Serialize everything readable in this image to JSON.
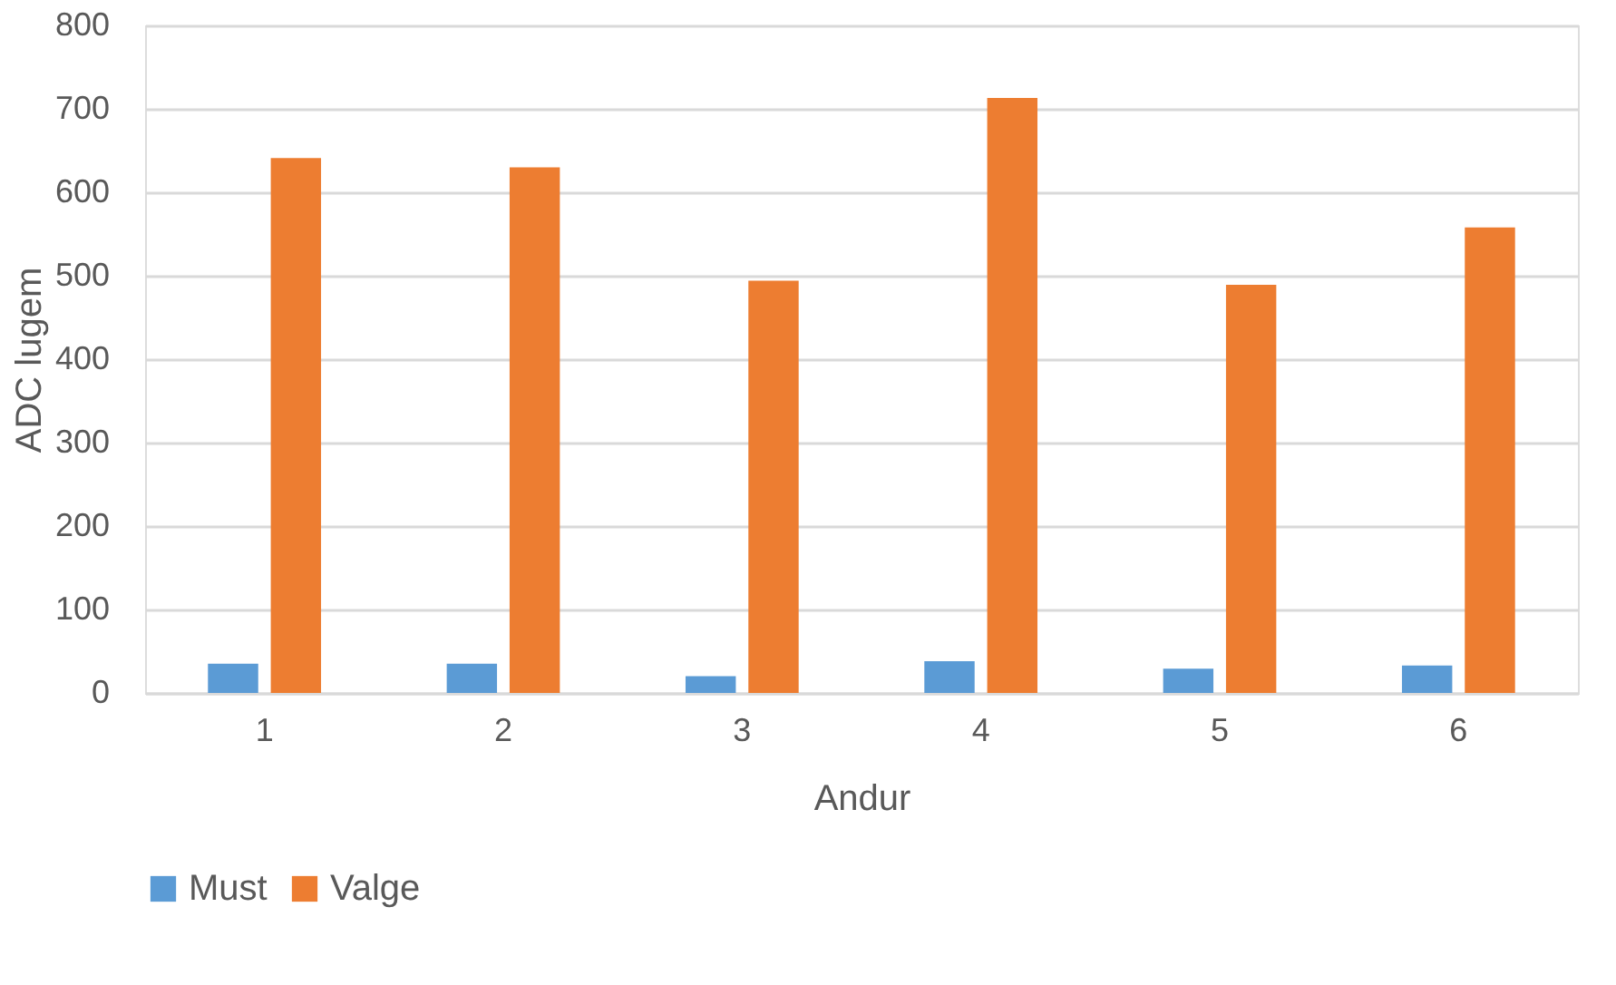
{
  "chart_data": {
    "type": "bar",
    "xlabel": "Andur",
    "ylabel": "ADC lugem",
    "categories": [
      "1",
      "2",
      "3",
      "4",
      "5",
      "6"
    ],
    "series": [
      {
        "name": "Must",
        "color": "#5b9bd5",
        "values": [
          35,
          35,
          20,
          38,
          29,
          33
        ]
      },
      {
        "name": "Valge",
        "color": "#ed7d31",
        "values": [
          641,
          630,
          494,
          713,
          489,
          558
        ]
      }
    ],
    "ylim": [
      0,
      800
    ],
    "yticks": [
      0,
      100,
      200,
      300,
      400,
      500,
      600,
      700,
      800
    ],
    "grid": "y",
    "legend": "bottom"
  }
}
